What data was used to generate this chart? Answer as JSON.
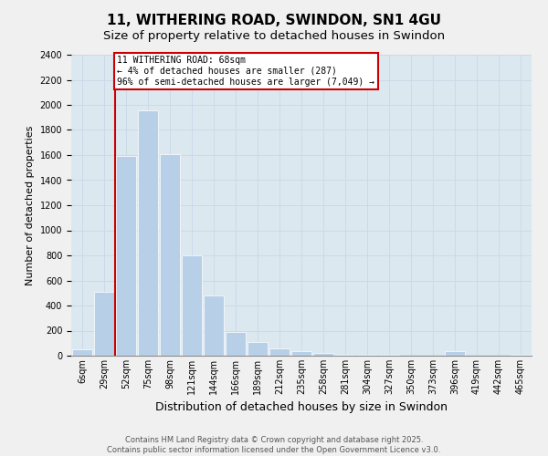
{
  "title": "11, WITHERING ROAD, SWINDON, SN1 4GU",
  "subtitle": "Size of property relative to detached houses in Swindon",
  "xlabel": "Distribution of detached houses by size in Swindon",
  "ylabel": "Number of detached properties",
  "footer_line1": "Contains HM Land Registry data © Crown copyright and database right 2025.",
  "footer_line2": "Contains public sector information licensed under the Open Government Licence v3.0.",
  "categories": [
    "6sqm",
    "29sqm",
    "52sqm",
    "75sqm",
    "98sqm",
    "121sqm",
    "144sqm",
    "166sqm",
    "189sqm",
    "212sqm",
    "235sqm",
    "258sqm",
    "281sqm",
    "304sqm",
    "327sqm",
    "350sqm",
    "373sqm",
    "396sqm",
    "419sqm",
    "442sqm",
    "465sqm"
  ],
  "values": [
    50,
    510,
    1590,
    1960,
    1610,
    800,
    480,
    190,
    110,
    55,
    35,
    20,
    10,
    5,
    5,
    0,
    0,
    35,
    0,
    0,
    5
  ],
  "bar_color": "#b8cfe8",
  "bar_edge_color": "#ffffff",
  "vline_color": "#cc0000",
  "annotation_text": "11 WITHERING ROAD: 68sqm\n← 4% of detached houses are smaller (287)\n96% of semi-detached houses are larger (7,049) →",
  "annotation_box_color": "#ffffff",
  "annotation_box_edge_color": "#cc0000",
  "ylim": [
    0,
    2400
  ],
  "yticks": [
    0,
    200,
    400,
    600,
    800,
    1000,
    1200,
    1400,
    1600,
    1800,
    2000,
    2200,
    2400
  ],
  "grid_color": "#c8d8e8",
  "background_color": "#dce8f0",
  "fig_background": "#f0f0f0",
  "title_fontsize": 11,
  "subtitle_fontsize": 9.5,
  "ylabel_fontsize": 8,
  "xlabel_fontsize": 9,
  "tick_fontsize": 7,
  "annotation_fontsize": 7,
  "footer_fontsize": 6
}
